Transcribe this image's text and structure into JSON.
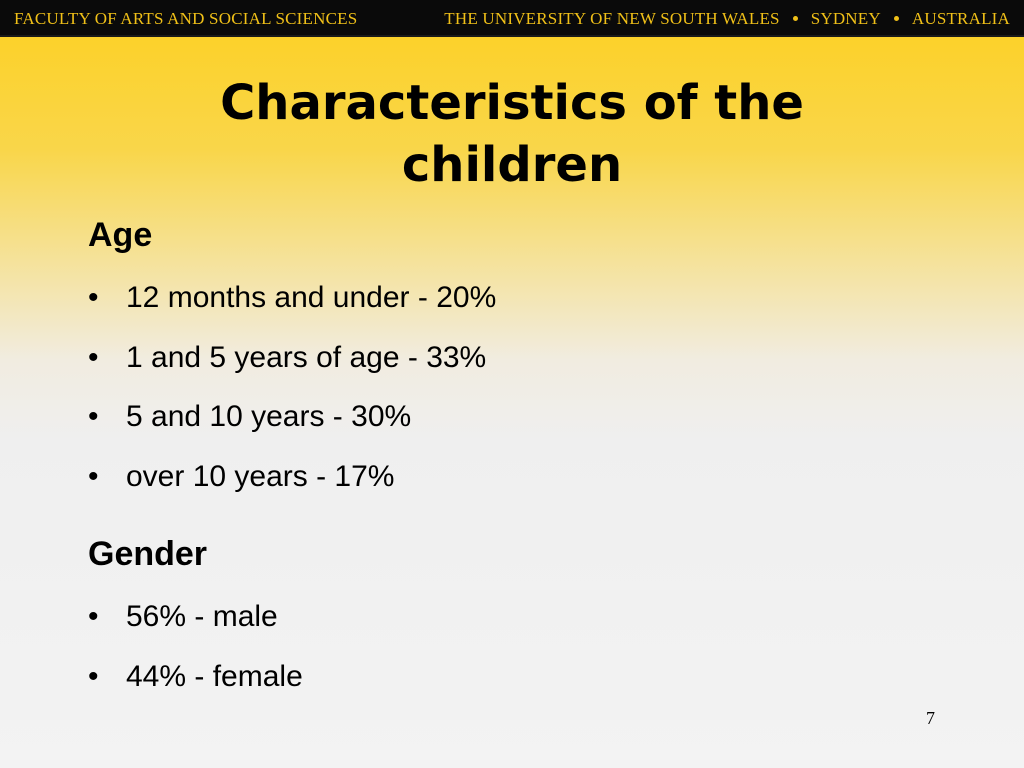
{
  "header": {
    "faculty": "FACULTY OF ARTS AND SOCIAL SCIENCES",
    "university": "THE UNIVERSITY OF NEW SOUTH WALES",
    "city": "SYDNEY",
    "country": "AUSTRALIA"
  },
  "slide": {
    "title_line1": "Characteristics of the",
    "title_line2": "children",
    "sections": [
      {
        "heading": "Age",
        "items": [
          "12 months and under - 20%",
          "1 and 5 years of age - 33%",
          "5 and 10 years - 30%",
          "over 10 years - 17%"
        ]
      },
      {
        "heading": "Gender",
        "items": [
          "56% - male",
          "44% - female"
        ]
      }
    ],
    "bullet_symbol": "•",
    "page_number": "7"
  },
  "colors": {
    "banner_background": "#0a0a0a",
    "banner_text": "#f0c018",
    "gradient_top": "#fdd020",
    "gradient_bottom": "#f3f3f3"
  }
}
